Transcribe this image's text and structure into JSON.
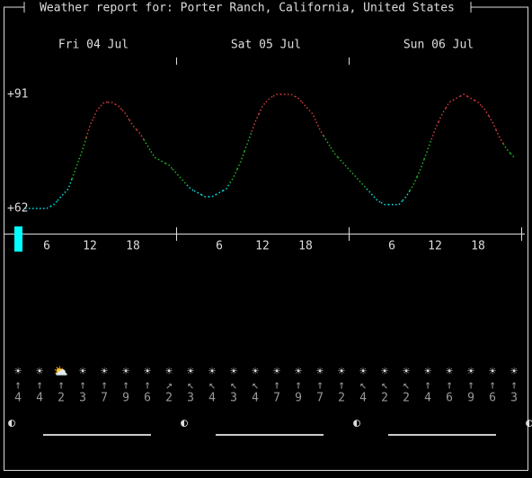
{
  "header": {
    "title": "Weather report for: Porter Ranch, California, United States"
  },
  "days": [
    "Fri 04 Jul",
    "Sat 05 Jul",
    "Sun 06 Jul"
  ],
  "chart_data": {
    "type": "line",
    "ylim": [
      62,
      91
    ],
    "yticks": [
      {
        "value": 91,
        "label": "+91"
      },
      {
        "value": 62,
        "label": "+62"
      }
    ],
    "xticks": [
      6,
      12,
      18
    ],
    "values": [
      null,
      null,
      null,
      62,
      62,
      62,
      62,
      63,
      65,
      67,
      72,
      77,
      83,
      87,
      89,
      89,
      88,
      86,
      83,
      81,
      78,
      75,
      74,
      73,
      71,
      69,
      67,
      66,
      65,
      65,
      66,
      67,
      70,
      74,
      79,
      84,
      88,
      90,
      91,
      91,
      91,
      90,
      88,
      86,
      82,
      79,
      76,
      74,
      72,
      70,
      68,
      66,
      64,
      63,
      63,
      63,
      65,
      68,
      72,
      77,
      82,
      86,
      89,
      90,
      91,
      90,
      89,
      87,
      84,
      80,
      77,
      75
    ]
  },
  "forecast": [
    {
      "icon": "☀",
      "arrow": "↑",
      "speed": 4
    },
    {
      "icon": "☀",
      "arrow": "↑",
      "speed": 4
    },
    {
      "icon": "⛅",
      "arrow": "↑",
      "speed": 2
    },
    {
      "icon": "☀",
      "arrow": "↑",
      "speed": 3
    },
    {
      "icon": "☀",
      "arrow": "↑",
      "speed": 7
    },
    {
      "icon": "☀",
      "arrow": "↑",
      "speed": 9
    },
    {
      "icon": "☀",
      "arrow": "↑",
      "speed": 6
    },
    {
      "icon": "☀",
      "arrow": "↗",
      "speed": 2
    },
    {
      "icon": "☀",
      "arrow": "↖",
      "speed": 3
    },
    {
      "icon": "☀",
      "arrow": "↖",
      "speed": 4
    },
    {
      "icon": "☀",
      "arrow": "↖",
      "speed": 3
    },
    {
      "icon": "☀",
      "arrow": "↖",
      "speed": 4
    },
    {
      "icon": "☀",
      "arrow": "↑",
      "speed": 7
    },
    {
      "icon": "☀",
      "arrow": "↑",
      "speed": 9
    },
    {
      "icon": "☀",
      "arrow": "↑",
      "speed": 7
    },
    {
      "icon": "☀",
      "arrow": "↑",
      "speed": 2
    },
    {
      "icon": "☀",
      "arrow": "↖",
      "speed": 4
    },
    {
      "icon": "☀",
      "arrow": "↖",
      "speed": 2
    },
    {
      "icon": "☀",
      "arrow": "↖",
      "speed": 2
    },
    {
      "icon": "☀",
      "arrow": "↑",
      "speed": 4
    },
    {
      "icon": "☀",
      "arrow": "↑",
      "speed": 6
    },
    {
      "icon": "☀",
      "arrow": "↑",
      "speed": 9
    },
    {
      "icon": "☀",
      "arrow": "↑",
      "speed": 6
    },
    {
      "icon": "☀",
      "arrow": "↑",
      "speed": 3
    }
  ],
  "moon": [
    "◐",
    "◐",
    "◐",
    "◐"
  ]
}
